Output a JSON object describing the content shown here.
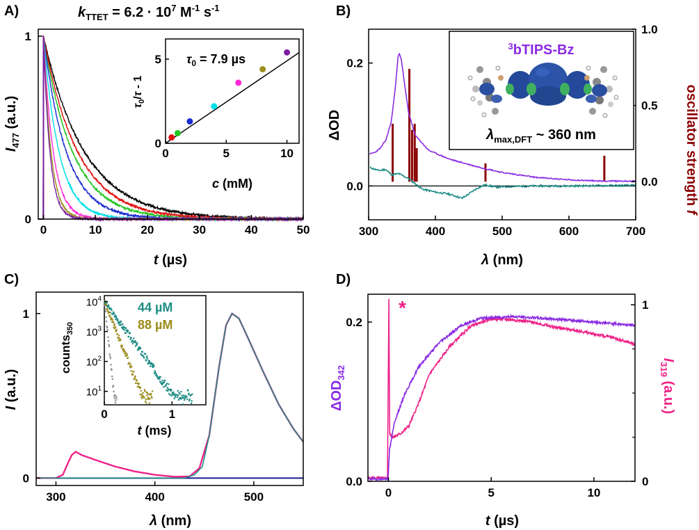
{
  "panels": {
    "A": {
      "label": "A)",
      "title": "k_TTET = 6.2 · 10^7 M^-1 s^-1",
      "title_parts": {
        "k": "k",
        "k_sub": "TTET",
        "eq": " = 6.2 · 10",
        "exp1": "7",
        "unit1": " M",
        "exp2": "-1",
        "unit2": " s",
        "exp3": "-1"
      },
      "xlabel": "t (µs)",
      "xlabel_parts": {
        "var": "t",
        "unit": " (µs)"
      },
      "ylabel_parts": {
        "var": "I",
        "sub": "477",
        "unit": " (a.u.)"
      },
      "xticks": [
        "0",
        "10",
        "20",
        "30",
        "40",
        "50"
      ],
      "yticks": [
        "0",
        "1"
      ],
      "inset": {
        "annotation_parts": {
          "var": "τ",
          "sub": "0",
          "text": " = 7.9 µs"
        },
        "xlabel_parts": {
          "var": "c",
          "unit": " (mM)"
        },
        "ylabel_parts": {
          "a": "τ",
          "a_sub": "0",
          "slash": "/",
          "b": "τ",
          "rest": " - 1"
        },
        "xticks": [
          "0",
          "5",
          "10"
        ],
        "yticks": [
          "0",
          "5"
        ]
      }
    },
    "B": {
      "label": "B)",
      "ylabel_left": "ΔOD",
      "ylabel_right_parts": {
        "text": "oscillator strength ",
        "var": "f"
      },
      "xlabel_parts": {
        "var": "λ",
        "unit": " (nm)"
      },
      "xticks": [
        "300",
        "400",
        "500",
        "600",
        "700"
      ],
      "yticks_left": [
        "0.0",
        "0.2"
      ],
      "yticks_right": [
        "0.0",
        "0.5",
        "1.0"
      ],
      "inset": {
        "title": "3bTIPS-Bz",
        "title_parts": {
          "sup": "3",
          "text": "bTIPS-Bz"
        },
        "annotation_parts": {
          "var": "λ",
          "sub": "max,DFT",
          "text": " ~ 360 nm"
        }
      }
    },
    "C": {
      "label": "C)",
      "xlabel_parts": {
        "var": "λ",
        "unit": " (nm)"
      },
      "ylabel_parts": {
        "var": "I",
        "unit": " (a.u.)"
      },
      "xticks": [
        "300",
        "400",
        "500"
      ],
      "yticks": [
        "0",
        "1"
      ],
      "inset": {
        "ylabel_parts": {
          "text": "counts",
          "sub": "350"
        },
        "xlabel_parts": {
          "var": "t",
          "unit": " (ms)"
        },
        "xticks": [
          "0",
          "1"
        ],
        "yticks": [
          {
            "base": "10",
            "exp": "4"
          },
          {
            "base": "10",
            "exp": "3"
          },
          {
            "base": "10",
            "exp": "2"
          },
          {
            "base": "10",
            "exp": "1"
          }
        ],
        "legend": [
          "44 µM",
          "88 µM"
        ]
      }
    },
    "D": {
      "label": "D)",
      "ylabel_left_parts": {
        "text": "ΔOD",
        "sub": "342"
      },
      "ylabel_right_parts": {
        "var": "I",
        "sub": "319",
        "unit": " (a.u.)"
      },
      "xlabel_parts": {
        "var": "t",
        "unit": " (µs)"
      },
      "xticks": [
        "0",
        "5",
        "10"
      ],
      "yticks_left": [
        "0.0",
        "0.2"
      ],
      "yticks_right": [
        "0",
        "1"
      ],
      "annotation": "*"
    }
  },
  "colors": {
    "purple": "#8a2be2",
    "darkred": "#8b0000",
    "teal": "#1e8c84",
    "olive": "#9a8a1a",
    "pink": "#ee2288",
    "navy": "#1a1a8c",
    "inset_blue": "#2b4fa0"
  },
  "chart_data": [
    {
      "panel": "A",
      "type": "line",
      "xlim": [
        -1,
        50
      ],
      "ylim": [
        0,
        1
      ],
      "series": [
        {
          "color": "#000000",
          "tau": 7.9
        },
        {
          "color": "#22c522",
          "tau": 5.6
        },
        {
          "color": "#e01010",
          "tau": 6.6
        },
        {
          "color": "#1a2ad0",
          "tau": 4.4
        },
        {
          "color": "#00e0e8",
          "tau": 3.0
        },
        {
          "color": "#ff2ad4",
          "tau": 1.9
        },
        {
          "color": "#9c8f1a",
          "tau": 1.45
        },
        {
          "color": "#7a1fa0",
          "tau": 1.25
        }
      ]
    },
    {
      "panel": "A-inset",
      "type": "scatter",
      "xlim": [
        0,
        11
      ],
      "ylim": [
        0,
        6.2
      ],
      "points": [
        {
          "x": 0.5,
          "y": 0.35,
          "color": "#e01010"
        },
        {
          "x": 1.0,
          "y": 0.6,
          "color": "#22c522"
        },
        {
          "x": 2.0,
          "y": 1.3,
          "color": "#1a2ad0"
        },
        {
          "x": 4.0,
          "y": 2.2,
          "color": "#00e0e8"
        },
        {
          "x": 6.0,
          "y": 3.6,
          "color": "#ff2ad4"
        },
        {
          "x": 8.0,
          "y": 4.4,
          "color": "#9c8f1a"
        },
        {
          "x": 10.0,
          "y": 5.4,
          "color": "#7a1fa0"
        }
      ],
      "fit": {
        "slope": 0.49,
        "intercept": 0.0
      }
    },
    {
      "panel": "B",
      "type": "line",
      "xlim": [
        300,
        700
      ],
      "ylim": [
        -0.055,
        0.255
      ],
      "purple_curve": [
        [
          302,
          0.052
        ],
        [
          310,
          0.055
        ],
        [
          318,
          0.062
        ],
        [
          326,
          0.075
        ],
        [
          334,
          0.105
        ],
        [
          340,
          0.16
        ],
        [
          344,
          0.21
        ],
        [
          346,
          0.215
        ],
        [
          349,
          0.205
        ],
        [
          354,
          0.165
        ],
        [
          360,
          0.118
        ],
        [
          370,
          0.082
        ],
        [
          390,
          0.058
        ],
        [
          420,
          0.044
        ],
        [
          460,
          0.032
        ],
        [
          500,
          0.022
        ],
        [
          550,
          0.014
        ],
        [
          600,
          0.01
        ],
        [
          650,
          0.008
        ],
        [
          700,
          0.008
        ]
      ],
      "teal_curve": [
        [
          302,
          0.03
        ],
        [
          315,
          0.025
        ],
        [
          325,
          0.027
        ],
        [
          335,
          0.018
        ],
        [
          345,
          0.02
        ],
        [
          360,
          0.012
        ],
        [
          380,
          -0.005
        ],
        [
          400,
          -0.01
        ],
        [
          420,
          -0.013
        ],
        [
          440,
          -0.02
        ],
        [
          450,
          -0.013
        ],
        [
          462,
          -0.004
        ],
        [
          475,
          0.002
        ],
        [
          490,
          -0.002
        ],
        [
          510,
          -0.001
        ],
        [
          550,
          0.0
        ],
        [
          600,
          0.0
        ],
        [
          700,
          0.001
        ]
      ],
      "oscillator_sticks": [
        [
          336,
          0.38
        ],
        [
          361,
          0.74
        ],
        [
          365,
          0.34
        ],
        [
          369,
          0.38
        ],
        [
          372,
          0.22
        ],
        [
          475,
          0.12
        ],
        [
          653,
          0.17
        ]
      ],
      "f_lim": [
        -0.25,
        1.0
      ]
    },
    {
      "panel": "C",
      "type": "line",
      "xlim": [
        280,
        550
      ],
      "ylim": [
        -0.045,
        1.13
      ],
      "pink_curve": [
        [
          280,
          0.0
        ],
        [
          300,
          0.0
        ],
        [
          307,
          0.02
        ],
        [
          312,
          0.09
        ],
        [
          316,
          0.14
        ],
        [
          320,
          0.16
        ],
        [
          326,
          0.14
        ],
        [
          340,
          0.11
        ],
        [
          360,
          0.07
        ],
        [
          380,
          0.04
        ],
        [
          400,
          0.02
        ],
        [
          420,
          0.008
        ],
        [
          435,
          0.01
        ],
        [
          445,
          0.06
        ],
        [
          455,
          0.26
        ],
        [
          465,
          0.68
        ],
        [
          472,
          0.93
        ],
        [
          478,
          1.0
        ],
        [
          485,
          0.97
        ],
        [
          495,
          0.84
        ],
        [
          510,
          0.64
        ],
        [
          525,
          0.45
        ],
        [
          540,
          0.3
        ],
        [
          550,
          0.22
        ]
      ],
      "teal_curve": [
        [
          280,
          0.0
        ],
        [
          430,
          0.0
        ],
        [
          440,
          0.02
        ],
        [
          448,
          0.07
        ],
        [
          455,
          0.26
        ],
        [
          465,
          0.68
        ],
        [
          472,
          0.93
        ],
        [
          478,
          1.0
        ],
        [
          485,
          0.97
        ],
        [
          495,
          0.84
        ],
        [
          510,
          0.64
        ],
        [
          525,
          0.45
        ],
        [
          540,
          0.3
        ],
        [
          550,
          0.22
        ]
      ],
      "navy_baseline": 0.0
    },
    {
      "panel": "C-inset",
      "type": "scatter",
      "xlim": [
        0,
        1.5
      ],
      "ylim_log10": [
        0.55,
        4.2
      ],
      "series": [
        {
          "name": "44 µM",
          "color": "#1e8c84",
          "decay_ms": 0.141
        },
        {
          "name": "88 µM",
          "color": "#9a8a1a",
          "decay_ms": 0.077
        },
        {
          "color": "#888888",
          "decay_ms": 0.02
        }
      ]
    },
    {
      "panel": "D",
      "type": "line",
      "xlim": [
        -1,
        12
      ],
      "ylim": [
        0,
        0.235
      ],
      "purple_curve": [
        [
          -1,
          0.003
        ],
        [
          -0.02,
          0.003
        ],
        [
          0.05,
          0.04
        ],
        [
          0.3,
          0.075
        ],
        [
          0.8,
          0.11
        ],
        [
          1.5,
          0.145
        ],
        [
          2.5,
          0.175
        ],
        [
          3.5,
          0.195
        ],
        [
          4.5,
          0.205
        ],
        [
          6,
          0.207
        ],
        [
          8,
          0.204
        ],
        [
          10,
          0.2
        ],
        [
          12,
          0.196
        ]
      ],
      "pink_curve_left_units": [
        [
          -1,
          0.004
        ],
        [
          -0.05,
          0.004
        ],
        [
          0.02,
          0.228
        ],
        [
          0.06,
          0.06
        ],
        [
          0.2,
          0.055
        ],
        [
          0.6,
          0.06
        ],
        [
          1,
          0.07
        ],
        [
          1.5,
          0.1
        ],
        [
          2,
          0.135
        ],
        [
          3,
          0.17
        ],
        [
          4,
          0.195
        ],
        [
          5,
          0.204
        ],
        [
          6,
          0.203
        ],
        [
          7,
          0.2
        ],
        [
          8,
          0.194
        ],
        [
          9,
          0.19
        ],
        [
          10,
          0.185
        ],
        [
          11,
          0.18
        ],
        [
          12,
          0.172
        ]
      ],
      "right_axis_lim": [
        0,
        1.06
      ]
    }
  ]
}
